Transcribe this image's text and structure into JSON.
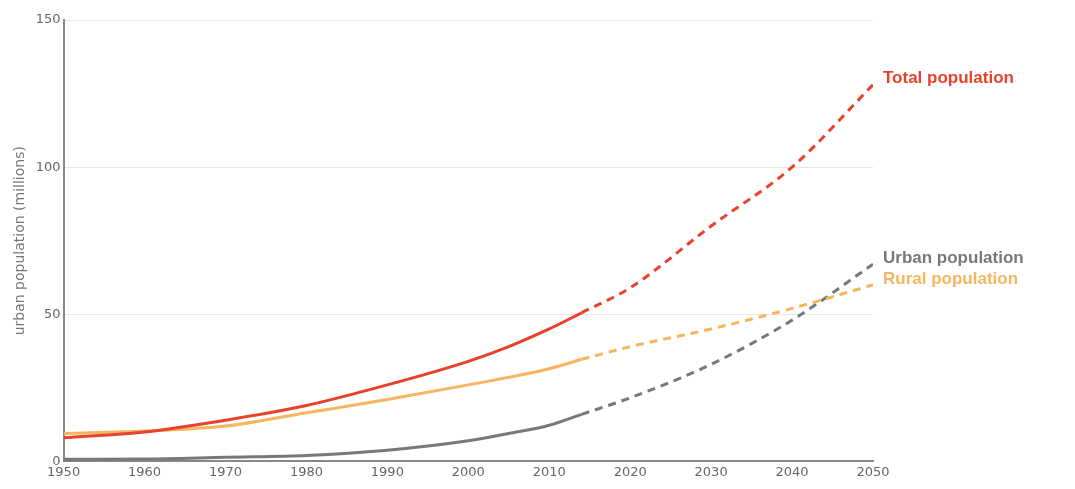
{
  "chart_data": {
    "type": "line",
    "ylabel": "urban population (millions)",
    "xlim": [
      1950,
      2050
    ],
    "xticks": [
      1950,
      1960,
      1970,
      1980,
      1990,
      2000,
      2010,
      2020,
      2030,
      2040,
      2050
    ],
    "ylim": [
      0,
      150
    ],
    "yticks": [
      0,
      50,
      100,
      150
    ],
    "grid": "y",
    "legend": false,
    "marker": "none",
    "series": [
      {
        "color": "#e8412c",
        "line_style": "solid",
        "x": [
          1950,
          1960,
          1970,
          1980,
          1990,
          2000,
          2005,
          2010,
          2014
        ],
        "values": [
          8,
          10,
          14,
          19,
          26,
          34,
          39,
          45,
          50.5
        ]
      },
      {
        "name": "Total population",
        "color": "#e8412c",
        "line_style": "dashed",
        "x": [
          2014,
          2020,
          2030,
          2040,
          2050
        ],
        "values": [
          50.5,
          59,
          80,
          100,
          128
        ]
      },
      {
        "color": "#f7b55e",
        "line_style": "solid",
        "x": [
          1950,
          1960,
          1970,
          1980,
          1990,
          2000,
          2010,
          2014
        ],
        "values": [
          9.5,
          10.3,
          12,
          16.5,
          21,
          26,
          31.5,
          34.7
        ]
      },
      {
        "name": "Rural population",
        "color": "#f7b55e",
        "line_style": "dashed",
        "x": [
          2014,
          2020,
          2030,
          2040,
          2050
        ],
        "values": [
          34.7,
          39,
          45,
          52,
          60
        ]
      },
      {
        "color": "#77787b",
        "line_style": "solid",
        "x": [
          1950,
          1960,
          1970,
          1980,
          1990,
          2000,
          2005,
          2010,
          2014
        ],
        "values": [
          0.7,
          0.8,
          1.4,
          2,
          3.8,
          7,
          9.5,
          12.3,
          16
        ]
      },
      {
        "name": "Urban population",
        "color": "#77787b",
        "line_style": "dashed",
        "x": [
          2014,
          2020,
          2030,
          2040,
          2050
        ],
        "values": [
          16,
          21.6,
          33,
          48,
          67
        ]
      }
    ]
  }
}
